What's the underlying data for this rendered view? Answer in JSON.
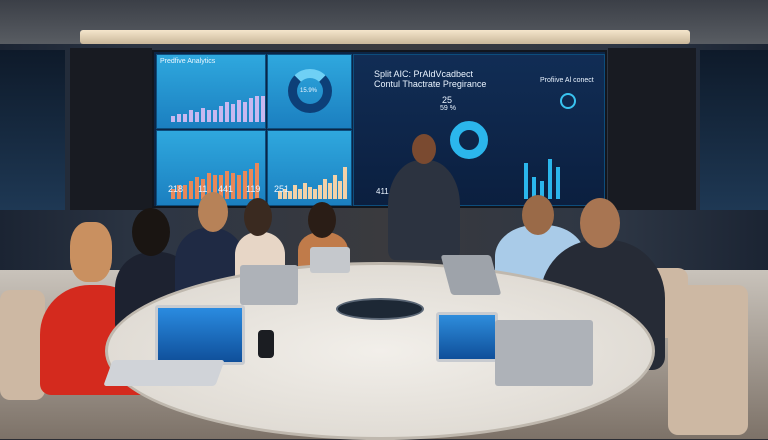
{
  "screen": {
    "panel1_title": "Predfive Analytics",
    "panel2_title": "Split AIC: PrAldVcadbect",
    "panel2_subtitle": "Contul Thactrate Pregirance",
    "panel2_right": "Profiive Al conect",
    "donut_label": "15.9%",
    "stat_a": "25",
    "stat_b": "59 %",
    "numbers": [
      "218",
      "11",
      "441",
      "119",
      "251"
    ],
    "bottom_number": "411"
  },
  "colors": {
    "screen_blue": "#2fa8de",
    "screen_dark": "#0b1f3f",
    "orange_bars": "#e8885a",
    "jacket_red": "#d42a1e"
  }
}
